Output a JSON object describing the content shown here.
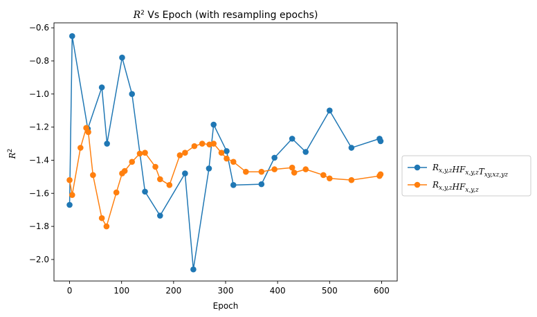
{
  "chart_data": {
    "type": "line",
    "title": "R² Vs Epoch (with resampling epochs)",
    "xlabel": "Epoch",
    "ylabel": "R²",
    "xlim": [
      -30,
      630
    ],
    "ylim": [
      -2.13,
      -0.57
    ],
    "xticks": [
      0,
      100,
      200,
      300,
      400,
      500,
      600
    ],
    "yticks": [
      -2.0,
      -1.8,
      -1.6,
      -1.4,
      -1.2,
      -1.0,
      -0.8,
      -0.6
    ],
    "xtick_labels": [
      "0",
      "100",
      "200",
      "300",
      "400",
      "500",
      "600"
    ],
    "ytick_labels": [
      "−2.0",
      "−1.8",
      "−1.6",
      "−1.4",
      "−1.2",
      "−1.0",
      "−0.8",
      "−0.6"
    ],
    "grid": false,
    "legend_position": "outside-right",
    "series": [
      {
        "name": "R_{x,y,z}HF_{x,y,z}T_{xy,xz,yz}",
        "color": "#1f77b4",
        "x": [
          0,
          5,
          35,
          62,
          72,
          101,
          120,
          145,
          174,
          222,
          238,
          268,
          277,
          302,
          315,
          369,
          394,
          428,
          454,
          500,
          542,
          596,
          598
        ],
        "y": [
          -1.67,
          -0.65,
          -1.21,
          -0.96,
          -1.3,
          -0.78,
          -1.0,
          -1.59,
          -1.735,
          -1.48,
          -2.06,
          -1.45,
          -1.185,
          -1.345,
          -1.55,
          -1.545,
          -1.385,
          -1.27,
          -1.35,
          -1.1,
          -1.325,
          -1.27,
          -1.285
        ]
      },
      {
        "name": "R_{x,y,z}HF_{x,y,z}",
        "color": "#ff7f0e",
        "x": [
          0,
          5,
          21,
          32,
          36,
          45,
          62,
          71,
          90,
          101,
          106,
          120,
          135,
          145,
          165,
          174,
          192,
          212,
          222,
          240,
          255,
          269,
          277,
          292,
          302,
          315,
          339,
          369,
          394,
          428,
          432,
          454,
          488,
          500,
          542,
          596,
          598
        ],
        "y": [
          -1.52,
          -1.61,
          -1.325,
          -1.205,
          -1.23,
          -1.49,
          -1.75,
          -1.8,
          -1.595,
          -1.48,
          -1.465,
          -1.41,
          -1.36,
          -1.355,
          -1.44,
          -1.515,
          -1.55,
          -1.37,
          -1.355,
          -1.315,
          -1.3,
          -1.305,
          -1.3,
          -1.355,
          -1.39,
          -1.41,
          -1.47,
          -1.47,
          -1.455,
          -1.445,
          -1.475,
          -1.455,
          -1.49,
          -1.51,
          -1.52,
          -1.495,
          -1.485
        ]
      }
    ]
  }
}
